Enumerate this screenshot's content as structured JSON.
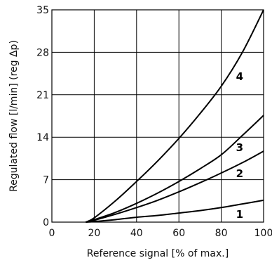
{
  "chart_data": {
    "type": "line",
    "xlabel": "Reference signal [% of max.]",
    "ylabel": "Regulated flow [l/min] (reg Δp)",
    "xlim": [
      0,
      100
    ],
    "ylim": [
      0,
      35
    ],
    "xticks": [
      0,
      20,
      40,
      60,
      80,
      100
    ],
    "yticks": [
      0,
      7,
      14,
      21,
      28,
      35
    ],
    "grid": true,
    "series": [
      {
        "name": "1",
        "x": [
          16,
          20,
          30,
          40,
          50,
          60,
          70,
          80,
          90,
          100
        ],
        "values": [
          0,
          0.1,
          0.4,
          0.8,
          1.1,
          1.5,
          1.9,
          2.4,
          3.0,
          3.6
        ]
      },
      {
        "name": "2",
        "x": [
          16,
          20,
          30,
          40,
          50,
          60,
          70,
          80,
          90,
          100
        ],
        "values": [
          0,
          0.3,
          1.3,
          2.4,
          3.6,
          5.0,
          6.5,
          8.1,
          9.8,
          11.7
        ]
      },
      {
        "name": "3",
        "x": [
          16,
          20,
          30,
          40,
          50,
          60,
          70,
          80,
          90,
          100
        ],
        "values": [
          0,
          0.4,
          1.6,
          3.1,
          4.8,
          6.7,
          8.8,
          11.1,
          14.3,
          17.6
        ]
      },
      {
        "name": "4",
        "x": [
          16,
          20,
          30,
          40,
          50,
          60,
          70,
          80,
          90,
          100
        ],
        "values": [
          0,
          0.7,
          3.5,
          6.7,
          10.1,
          13.8,
          17.9,
          22.4,
          28.0,
          35.0
        ]
      }
    ]
  }
}
